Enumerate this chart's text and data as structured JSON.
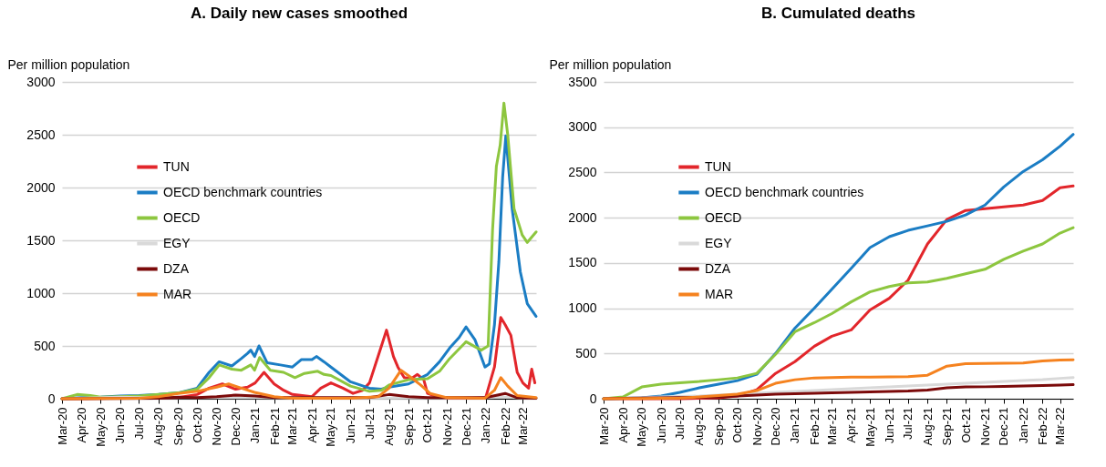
{
  "chart_data": [
    {
      "type": "line",
      "title": "A. Daily new cases smoothed",
      "ylabel": "Per million population",
      "legend": "top left",
      "grid": "y",
      "xlim": [
        "2020-03-01",
        "2022-03-22"
      ],
      "ylim": [
        0,
        3000
      ],
      "yticks": [
        0,
        500,
        1000,
        1500,
        2000,
        2500,
        3000
      ],
      "xticks": [
        {
          "value": "2020-03-01",
          "label": "Mar-20"
        },
        {
          "value": "2020-04-01",
          "label": "Apr-20"
        },
        {
          "value": "2020-05-01",
          "label": "May-20"
        },
        {
          "value": "2020-06-01",
          "label": "Jun-20"
        },
        {
          "value": "2020-07-01",
          "label": "Jul-20"
        },
        {
          "value": "2020-08-01",
          "label": "Aug-20"
        },
        {
          "value": "2020-09-01",
          "label": "Sep-20"
        },
        {
          "value": "2020-10-01",
          "label": "Oct-20"
        },
        {
          "value": "2020-11-01",
          "label": "Nov-20"
        },
        {
          "value": "2020-12-01",
          "label": "Dec-20"
        },
        {
          "value": "2021-01-01",
          "label": "Jan-21"
        },
        {
          "value": "2021-02-01",
          "label": "Feb-21"
        },
        {
          "value": "2021-03-01",
          "label": "Mar-21"
        },
        {
          "value": "2021-04-01",
          "label": "Apr-21"
        },
        {
          "value": "2021-05-01",
          "label": "May-21"
        },
        {
          "value": "2021-06-01",
          "label": "Jun-21"
        },
        {
          "value": "2021-07-01",
          "label": "Jul-21"
        },
        {
          "value": "2021-08-01",
          "label": "Aug-21"
        },
        {
          "value": "2021-09-01",
          "label": "Sep-21"
        },
        {
          "value": "2021-10-01",
          "label": "Oct-21"
        },
        {
          "value": "2021-11-01",
          "label": "Nov-21"
        },
        {
          "value": "2021-12-01",
          "label": "Dec-21"
        },
        {
          "value": "2022-01-01",
          "label": "Jan-22"
        },
        {
          "value": "2022-02-01",
          "label": "Feb-22"
        },
        {
          "value": "2022-03-01",
          "label": "Mar-22"
        }
      ],
      "series": [
        {
          "name": "TUN",
          "color": "#e2262b",
          "x": [
            "2020-03-01",
            "2020-09-01",
            "2020-10-01",
            "2020-10-20",
            "2020-11-10",
            "2020-12-01",
            "2020-12-20",
            "2021-01-01",
            "2021-01-15",
            "2021-01-31",
            "2021-02-15",
            "2021-03-01",
            "2021-04-01",
            "2021-04-15",
            "2021-05-01",
            "2021-05-20",
            "2021-06-05",
            "2021-06-20",
            "2021-07-01",
            "2021-07-20",
            "2021-07-28",
            "2021-08-08",
            "2021-08-15",
            "2021-08-25",
            "2021-09-05",
            "2021-09-15",
            "2021-09-25",
            "2021-10-01",
            "2021-10-15",
            "2021-11-01",
            "2021-12-01",
            "2022-01-01",
            "2022-01-15",
            "2022-01-25",
            "2022-02-01",
            "2022-02-10",
            "2022-02-20",
            "2022-03-01",
            "2022-03-10",
            "2022-03-15",
            "2022-03-20"
          ],
          "values": [
            0,
            10,
            40,
            100,
            140,
            90,
            110,
            150,
            250,
            140,
            80,
            40,
            20,
            100,
            150,
            100,
            50,
            80,
            150,
            500,
            650,
            400,
            300,
            200,
            190,
            230,
            180,
            50,
            20,
            5,
            5,
            10,
            300,
            770,
            700,
            600,
            250,
            150,
            100,
            280,
            150
          ]
        },
        {
          "name": "OECD benchmark countries",
          "color": "#1b7dc4",
          "x": [
            "2020-03-01",
            "2020-04-01",
            "2020-05-01",
            "2020-06-01",
            "2020-07-01",
            "2020-08-01",
            "2020-09-01",
            "2020-10-01",
            "2020-10-20",
            "2020-11-05",
            "2020-11-25",
            "2020-12-10",
            "2020-12-20",
            "2020-12-25",
            "2020-12-31",
            "2021-01-07",
            "2021-01-20",
            "2021-02-10",
            "2021-03-01",
            "2021-03-15",
            "2021-04-01",
            "2021-04-08",
            "2021-04-20",
            "2021-05-01",
            "2021-06-01",
            "2021-07-01",
            "2021-07-20",
            "2021-08-01",
            "2021-09-01",
            "2021-10-01",
            "2021-10-20",
            "2021-11-05",
            "2021-11-20",
            "2021-12-01",
            "2021-12-15",
            "2021-12-31",
            "2022-01-07",
            "2022-01-15",
            "2022-01-22",
            "2022-01-28",
            "2022-02-02",
            "2022-02-12",
            "2022-02-25",
            "2022-03-08",
            "2022-03-22"
          ],
          "values": [
            0,
            10,
            15,
            25,
            30,
            40,
            55,
            100,
            250,
            350,
            310,
            380,
            430,
            460,
            400,
            500,
            340,
            320,
            300,
            370,
            370,
            400,
            350,
            300,
            160,
            100,
            90,
            110,
            140,
            230,
            350,
            480,
            580,
            680,
            560,
            300,
            330,
            700,
            1300,
            2100,
            2490,
            1800,
            1200,
            900,
            780
          ]
        },
        {
          "name": "OECD",
          "color": "#8dc63f",
          "x": [
            "2020-03-01",
            "2020-03-25",
            "2020-04-15",
            "2020-05-01",
            "2020-06-01",
            "2020-07-01",
            "2020-08-01",
            "2020-09-01",
            "2020-10-01",
            "2020-10-20",
            "2020-11-05",
            "2020-11-25",
            "2020-12-10",
            "2020-12-25",
            "2020-12-31",
            "2021-01-08",
            "2021-01-25",
            "2021-02-15",
            "2021-03-05",
            "2021-03-20",
            "2021-04-10",
            "2021-04-20",
            "2021-05-01",
            "2021-06-01",
            "2021-07-01",
            "2021-07-20",
            "2021-08-01",
            "2021-09-01",
            "2021-10-01",
            "2021-10-20",
            "2021-11-05",
            "2021-12-01",
            "2021-12-25",
            "2022-01-05",
            "2022-01-12",
            "2022-01-18",
            "2022-01-24",
            "2022-01-30",
            "2022-02-05",
            "2022-02-15",
            "2022-02-28",
            "2022-03-08",
            "2022-03-15",
            "2022-03-22"
          ],
          "values": [
            0,
            40,
            30,
            15,
            20,
            25,
            40,
            55,
            90,
            200,
            320,
            280,
            270,
            320,
            270,
            390,
            270,
            250,
            200,
            240,
            260,
            230,
            220,
            120,
            70,
            80,
            130,
            180,
            190,
            260,
            380,
            540,
            460,
            500,
            1600,
            2200,
            2400,
            2800,
            2500,
            1800,
            1550,
            1480,
            1530,
            1580
          ]
        },
        {
          "name": "EGY",
          "color": "#d9d9d9",
          "x": [
            "2020-03-01",
            "2020-06-01",
            "2020-07-01",
            "2021-01-01",
            "2021-06-01",
            "2022-01-01",
            "2022-02-01",
            "2022-03-22"
          ],
          "values": [
            0,
            15,
            10,
            10,
            5,
            10,
            15,
            5
          ]
        },
        {
          "name": "DZA",
          "color": "#7b0a0a",
          "x": [
            "2020-03-01",
            "2020-08-01",
            "2020-09-01",
            "2020-10-01",
            "2020-11-01",
            "2020-12-01",
            "2021-01-01",
            "2021-02-01",
            "2021-07-01",
            "2021-08-01",
            "2021-09-01",
            "2021-10-01",
            "2022-01-01",
            "2022-02-01",
            "2022-02-20",
            "2022-03-22"
          ],
          "values": [
            0,
            5,
            15,
            10,
            20,
            35,
            25,
            10,
            10,
            40,
            20,
            10,
            10,
            50,
            10,
            5
          ]
        },
        {
          "name": "MAR",
          "color": "#f5821f",
          "x": [
            "2020-03-01",
            "2020-07-01",
            "2020-08-01",
            "2020-09-01",
            "2020-10-01",
            "2020-11-01",
            "2020-11-20",
            "2020-12-10",
            "2020-12-31",
            "2021-01-31",
            "2021-02-15",
            "2021-03-01",
            "2021-06-01",
            "2021-07-15",
            "2021-08-01",
            "2021-08-20",
            "2021-09-05",
            "2021-09-20",
            "2021-10-05",
            "2021-11-01",
            "2021-12-31",
            "2022-01-15",
            "2022-01-25",
            "2022-02-05",
            "2022-02-20",
            "2022-03-22"
          ],
          "values": [
            0,
            5,
            20,
            50,
            70,
            110,
            140,
            100,
            60,
            20,
            10,
            5,
            5,
            20,
            100,
            270,
            200,
            130,
            50,
            10,
            5,
            80,
            200,
            120,
            30,
            10
          ]
        }
      ]
    },
    {
      "type": "line",
      "title": "B. Cumulated deaths",
      "ylabel": "Per million population",
      "legend": "top left",
      "grid": "y",
      "xlim": [
        "2020-03-01",
        "2022-03-22"
      ],
      "ylim": [
        0,
        3500
      ],
      "yticks": [
        0,
        500,
        1000,
        1500,
        2000,
        2500,
        3000,
        3500
      ],
      "xticks": [
        {
          "value": "2020-03-01",
          "label": "Mar-20"
        },
        {
          "value": "2020-04-01",
          "label": "Apr-20"
        },
        {
          "value": "2020-05-01",
          "label": "May-20"
        },
        {
          "value": "2020-06-01",
          "label": "Jun-20"
        },
        {
          "value": "2020-07-01",
          "label": "Jul-20"
        },
        {
          "value": "2020-08-01",
          "label": "Aug-20"
        },
        {
          "value": "2020-09-01",
          "label": "Sep-20"
        },
        {
          "value": "2020-10-01",
          "label": "Oct-20"
        },
        {
          "value": "2020-11-01",
          "label": "Nov-20"
        },
        {
          "value": "2020-12-01",
          "label": "Dec-20"
        },
        {
          "value": "2021-01-01",
          "label": "Jan-21"
        },
        {
          "value": "2021-02-01",
          "label": "Feb-21"
        },
        {
          "value": "2021-03-01",
          "label": "Mar-21"
        },
        {
          "value": "2021-04-01",
          "label": "Apr-21"
        },
        {
          "value": "2021-05-01",
          "label": "May-21"
        },
        {
          "value": "2021-06-01",
          "label": "Jun-21"
        },
        {
          "value": "2021-07-01",
          "label": "Jul-21"
        },
        {
          "value": "2021-08-01",
          "label": "Aug-21"
        },
        {
          "value": "2021-09-01",
          "label": "Sep-21"
        },
        {
          "value": "2021-10-01",
          "label": "Oct-21"
        },
        {
          "value": "2021-11-01",
          "label": "Nov-21"
        },
        {
          "value": "2021-12-01",
          "label": "Dec-21"
        },
        {
          "value": "2022-01-01",
          "label": "Jan-22"
        },
        {
          "value": "2022-02-01",
          "label": "Feb-22"
        },
        {
          "value": "2022-03-01",
          "label": "Mar-22"
        }
      ],
      "x": [
        "2020-03-01",
        "2020-04-01",
        "2020-05-01",
        "2020-06-01",
        "2020-07-01",
        "2020-08-01",
        "2020-09-01",
        "2020-10-01",
        "2020-11-01",
        "2020-12-01",
        "2021-01-01",
        "2021-02-01",
        "2021-03-01",
        "2021-04-01",
        "2021-05-01",
        "2021-06-01",
        "2021-07-01",
        "2021-08-01",
        "2021-09-01",
        "2021-10-01",
        "2021-11-01",
        "2021-12-01",
        "2022-01-01",
        "2022-02-01",
        "2022-03-01",
        "2022-03-22"
      ],
      "series": [
        {
          "name": "TUN",
          "color": "#e2262b",
          "values": [
            0,
            0,
            0,
            0,
            0,
            5,
            10,
            30,
            100,
            280,
            410,
            580,
            690,
            760,
            980,
            1110,
            1310,
            1710,
            1980,
            2080,
            2100,
            2120,
            2140,
            2190,
            2330,
            2350
          ]
        },
        {
          "name": "OECD benchmark countries",
          "color": "#1b7dc4",
          "values": [
            0,
            5,
            10,
            30,
            70,
            120,
            160,
            200,
            270,
            500,
            780,
            1000,
            1210,
            1440,
            1670,
            1790,
            1860,
            1910,
            1960,
            2030,
            2140,
            2340,
            2510,
            2640,
            2790,
            2920
          ]
        },
        {
          "name": "OECD",
          "color": "#8dc63f",
          "values": [
            0,
            20,
            130,
            160,
            175,
            190,
            210,
            230,
            280,
            490,
            740,
            840,
            940,
            1070,
            1180,
            1240,
            1280,
            1290,
            1330,
            1380,
            1430,
            1540,
            1630,
            1710,
            1830,
            1890
          ]
        },
        {
          "name": "EGY",
          "color": "#d9d9d9",
          "values": [
            0,
            5,
            10,
            20,
            25,
            30,
            40,
            50,
            60,
            70,
            80,
            90,
            100,
            110,
            120,
            130,
            140,
            150,
            160,
            170,
            180,
            190,
            200,
            210,
            225,
            235
          ]
        },
        {
          "name": "DZA",
          "color": "#7b0a0a",
          "values": [
            0,
            5,
            8,
            10,
            12,
            15,
            20,
            30,
            40,
            50,
            55,
            60,
            65,
            70,
            75,
            80,
            85,
            95,
            120,
            130,
            132,
            135,
            140,
            145,
            150,
            155
          ]
        },
        {
          "name": "MAR",
          "color": "#f5821f",
          "values": [
            0,
            2,
            3,
            5,
            8,
            20,
            35,
            50,
            90,
            170,
            210,
            230,
            235,
            238,
            240,
            242,
            245,
            260,
            360,
            387,
            390,
            393,
            395,
            417,
            427,
            430
          ]
        }
      ]
    }
  ]
}
